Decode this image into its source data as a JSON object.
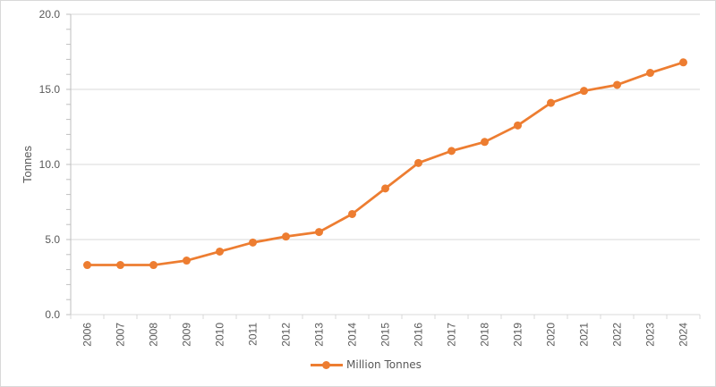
{
  "chart_data": {
    "type": "line",
    "title": "",
    "xlabel": "",
    "ylabel": "Tonnes",
    "ylim": [
      0,
      20
    ],
    "yticks": [
      "0.0",
      "5.0",
      "10.0",
      "15.0",
      "20.0"
    ],
    "y_minor_tick_step": 1,
    "grid": true,
    "legend_position": "bottom",
    "categories": [
      "2006",
      "2007",
      "2008",
      "2009",
      "2010",
      "2011",
      "2012",
      "2013",
      "2014",
      "2015",
      "2016",
      "2017",
      "2018",
      "2019",
      "2020",
      "2021",
      "2022",
      "2023",
      "2024"
    ],
    "series": [
      {
        "name": "Million Tonnes",
        "color": "#ED7D31",
        "marker": "circle",
        "values": [
          3.3,
          3.3,
          3.3,
          3.6,
          4.2,
          4.8,
          5.2,
          5.5,
          6.7,
          8.4,
          10.1,
          10.9,
          11.5,
          12.6,
          14.1,
          14.9,
          15.3,
          16.1,
          16.8
        ]
      }
    ]
  },
  "legend": {
    "label": "Million Tonnes"
  },
  "axis": {
    "ylabel": "Tonnes"
  }
}
